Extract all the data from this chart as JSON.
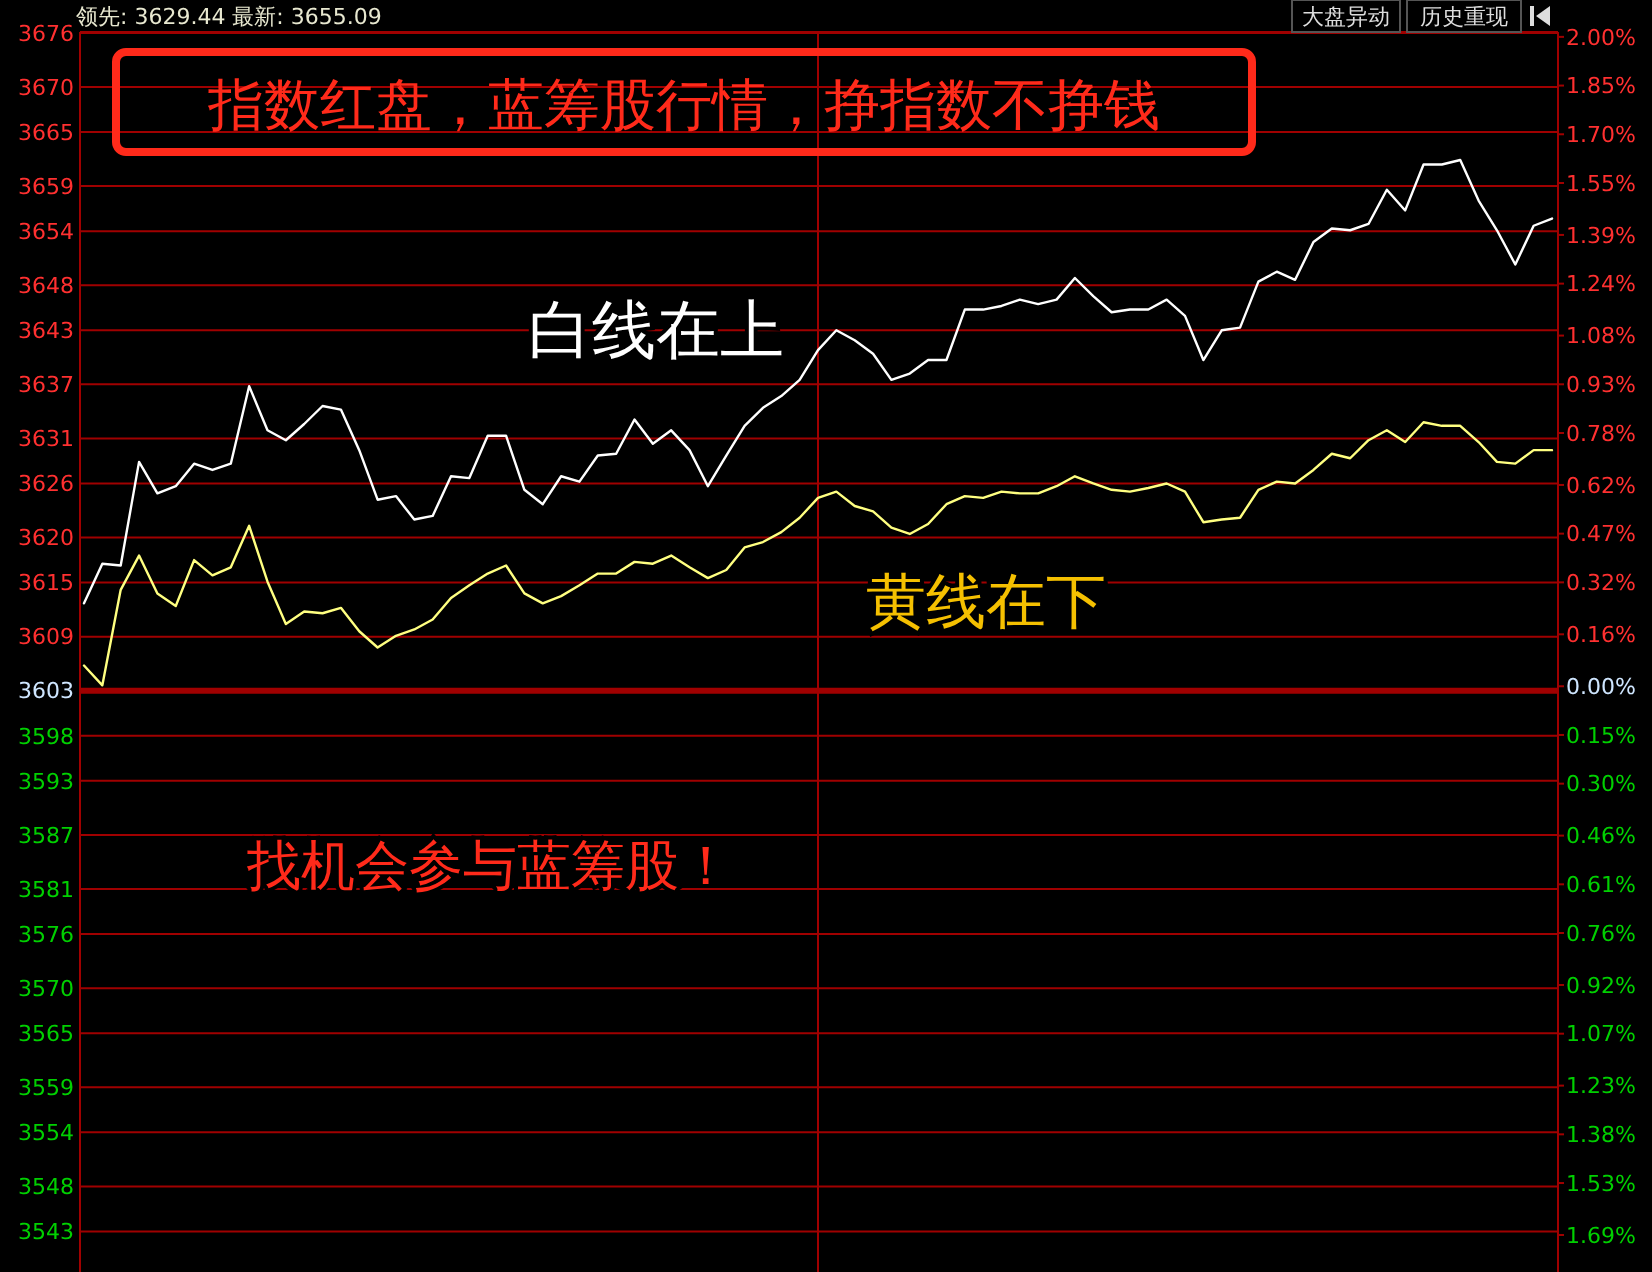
{
  "chart_data": {
    "type": "line",
    "title": "指数红盘，蓝筹股行情，挣指数不挣钱",
    "annotations": [
      "领先: 3629.44 最新: 3655.09",
      "大盘异动",
      "历史重现",
      "白线在上",
      "黄线在下",
      "找机会参与蓝筹股！"
    ],
    "categories": [
      null,
      null,
      null,
      null,
      null,
      null,
      null,
      null,
      null,
      null,
      null,
      null,
      null,
      null,
      null,
      null,
      null,
      null,
      null,
      null,
      null,
      null,
      null,
      null,
      null,
      null,
      null,
      null,
      null,
      null,
      null,
      null,
      null,
      null,
      null,
      null,
      null,
      null,
      null,
      null,
      null,
      null,
      null,
      null,
      null,
      null,
      null,
      null,
      null,
      null,
      null,
      null,
      null,
      null,
      null,
      null,
      null,
      null,
      null,
      null,
      null,
      null,
      null,
      null,
      null,
      null,
      null,
      null,
      null,
      null,
      null,
      null,
      null,
      null,
      null,
      null,
      null,
      null,
      null,
      null,
      null
    ],
    "series": [
      {
        "color": "#ffffff",
        "values": [
          3612.7,
          3617.1,
          3616.9,
          3628.4,
          3624.9,
          3625.7,
          3628.2,
          3627.5,
          3628.2,
          3636.8,
          3631.9,
          3630.8,
          3632.6,
          3634.6,
          3634.2,
          3629.7,
          3624.2,
          3624.6,
          3622.0,
          3622.4,
          3626.8,
          3626.6,
          3631.3,
          3631.3,
          3625.3,
          3623.7,
          3626.8,
          3626.2,
          3629.1,
          3629.3,
          3633.1,
          3630.4,
          3631.9,
          3629.7,
          3625.7,
          3629.1,
          3632.4,
          3634.4,
          3635.7,
          3637.5,
          3640.8,
          3643.0,
          3641.9,
          3640.4,
          3637.5,
          3638.2,
          3639.7,
          3639.7,
          3645.3,
          3645.3,
          3645.7,
          3646.4,
          3645.9,
          3646.4,
          3648.8,
          3646.8,
          3645.0,
          3645.3,
          3645.3,
          3646.4,
          3644.6,
          3639.7,
          3643.0,
          3643.3,
          3648.4,
          3649.5,
          3648.6,
          3652.8,
          3654.3,
          3654.1,
          3654.8,
          3658.6,
          3656.3,
          3661.4,
          3661.4,
          3661.9,
          3657.4,
          3654.1,
          3650.3,
          3654.6,
          3655.4
        ]
      },
      {
        "color": "#ffff80",
        "values": [
          3605.8,
          3603.6,
          3614.2,
          3618.0,
          3613.8,
          3612.4,
          3617.5,
          3615.8,
          3616.7,
          3621.3,
          3615.1,
          3610.4,
          3611.8,
          3611.6,
          3612.2,
          3609.6,
          3607.8,
          3609.1,
          3609.8,
          3610.9,
          3613.3,
          3614.7,
          3616.0,
          3616.9,
          3613.8,
          3612.7,
          3613.5,
          3614.7,
          3616.0,
          3616.0,
          3617.3,
          3617.1,
          3618.0,
          3616.7,
          3615.5,
          3616.4,
          3618.9,
          3619.5,
          3620.6,
          3622.2,
          3624.4,
          3625.1,
          3623.5,
          3622.9,
          3621.1,
          3620.4,
          3621.5,
          3623.7,
          3624.6,
          3624.4,
          3625.1,
          3624.9,
          3624.9,
          3625.7,
          3626.8,
          3626.0,
          3625.3,
          3625.1,
          3625.5,
          3626.0,
          3625.1,
          3621.7,
          3622.0,
          3622.2,
          3625.3,
          3626.2,
          3626.0,
          3627.5,
          3629.3,
          3628.8,
          3630.8,
          3631.9,
          3630.6,
          3632.8,
          3632.4,
          3632.4,
          3630.6,
          3628.4,
          3628.2,
          3629.7,
          3629.7
        ]
      }
    ],
    "ylim": [
      3538.5,
      3676.1
    ],
    "yticks": [
      3543,
      3548,
      3554,
      3559,
      3565,
      3570,
      3576,
      3581,
      3587,
      3593,
      3598,
      3603,
      3609,
      3615,
      3620,
      3626,
      3631,
      3637,
      3643,
      3648,
      3654,
      3659,
      3665,
      3670,
      3676
    ],
    "y2lim": [
      -1.804,
      2.015
    ],
    "y2ticks": [
      {
        "value": -1.69,
        "label": "1.69%"
      },
      {
        "value": -1.53,
        "label": "1.53%"
      },
      {
        "value": -1.38,
        "label": "1.38%"
      },
      {
        "value": -1.23,
        "label": "1.23%"
      },
      {
        "value": -1.07,
        "label": "1.07%"
      },
      {
        "value": -0.92,
        "label": "0.92%"
      },
      {
        "value": -0.76,
        "label": "0.76%"
      },
      {
        "value": -0.61,
        "label": "0.61%"
      },
      {
        "value": -0.46,
        "label": "0.46%"
      },
      {
        "value": -0.3,
        "label": "0.30%"
      },
      {
        "value": -0.15,
        "label": "0.15%"
      },
      {
        "value": 0,
        "label": "0.00%"
      },
      {
        "value": 0.16,
        "label": "0.16%"
      },
      {
        "value": 0.32,
        "label": "0.32%"
      },
      {
        "value": 0.47,
        "label": "0.47%"
      },
      {
        "value": 0.62,
        "label": "0.62%"
      },
      {
        "value": 0.78,
        "label": "0.78%"
      },
      {
        "value": 0.93,
        "label": "0.93%"
      },
      {
        "value": 1.08,
        "label": "1.08%"
      },
      {
        "value": 1.24,
        "label": "1.24%"
      },
      {
        "value": 1.39,
        "label": "1.39%"
      },
      {
        "value": 1.55,
        "label": "1.55%"
      },
      {
        "value": 1.7,
        "label": "1.70%"
      },
      {
        "value": 1.85,
        "label": "1.85%"
      },
      {
        "value": 2.0,
        "label": "2.00%"
      }
    ],
    "ref_lines": [
      {
        "axis": "y",
        "value": 3603,
        "color": "#a00000"
      }
    ],
    "grid": true,
    "marker": "none",
    "line_style": "solid"
  }
}
